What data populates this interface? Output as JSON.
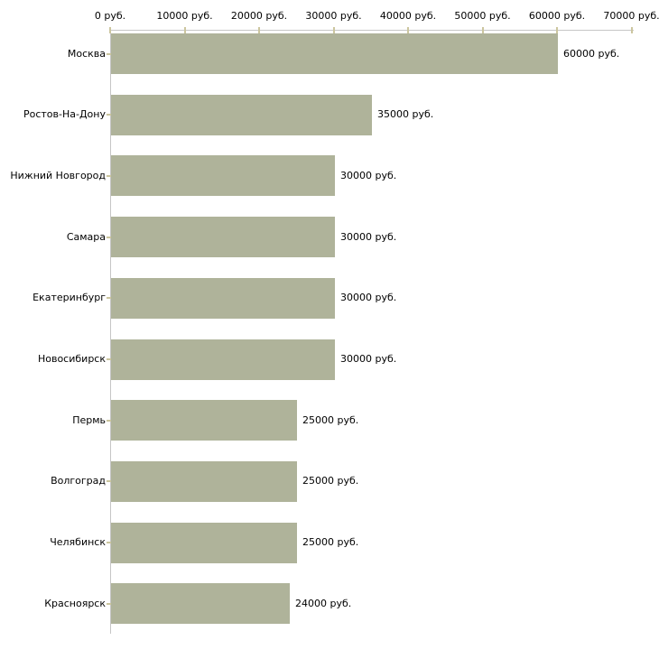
{
  "chart_data": {
    "type": "bar",
    "orientation": "horizontal",
    "title": "",
    "categories": [
      "Москва",
      "Ростов-На-Дону",
      "Нижний Новгород",
      "Самара",
      "Екатеринбург",
      "Новосибирск",
      "Пермь",
      "Волгоград",
      "Челябинск",
      "Красноярск"
    ],
    "values": [
      60000,
      35000,
      30000,
      30000,
      30000,
      30000,
      25000,
      25000,
      25000,
      24000
    ],
    "value_labels": [
      "60000 руб.",
      "35000 руб.",
      "30000 руб.",
      "30000 руб.",
      "30000 руб.",
      "30000 руб.",
      "25000 руб.",
      "25000 руб.",
      "25000 руб.",
      "24000 руб."
    ],
    "x_axis": {
      "position": "top",
      "ticks": [
        0,
        10000,
        20000,
        30000,
        40000,
        50000,
        60000,
        70000
      ],
      "tick_labels": [
        "0 руб.",
        "10000 руб.",
        "20000 руб.",
        "30000 руб.",
        "40000 руб.",
        "50000 руб.",
        "60000 руб.",
        "70000 руб."
      ],
      "xlim": [
        0,
        70000
      ]
    },
    "ylabel": "",
    "xlabel": "",
    "grid": false,
    "legend": "none",
    "unit": "руб.",
    "colors": {
      "bar": "#afb39a",
      "axis_line": "#c6c6c6",
      "tick_mark": "#ccc69f",
      "text": "#000000",
      "background": "#ffffff"
    }
  }
}
